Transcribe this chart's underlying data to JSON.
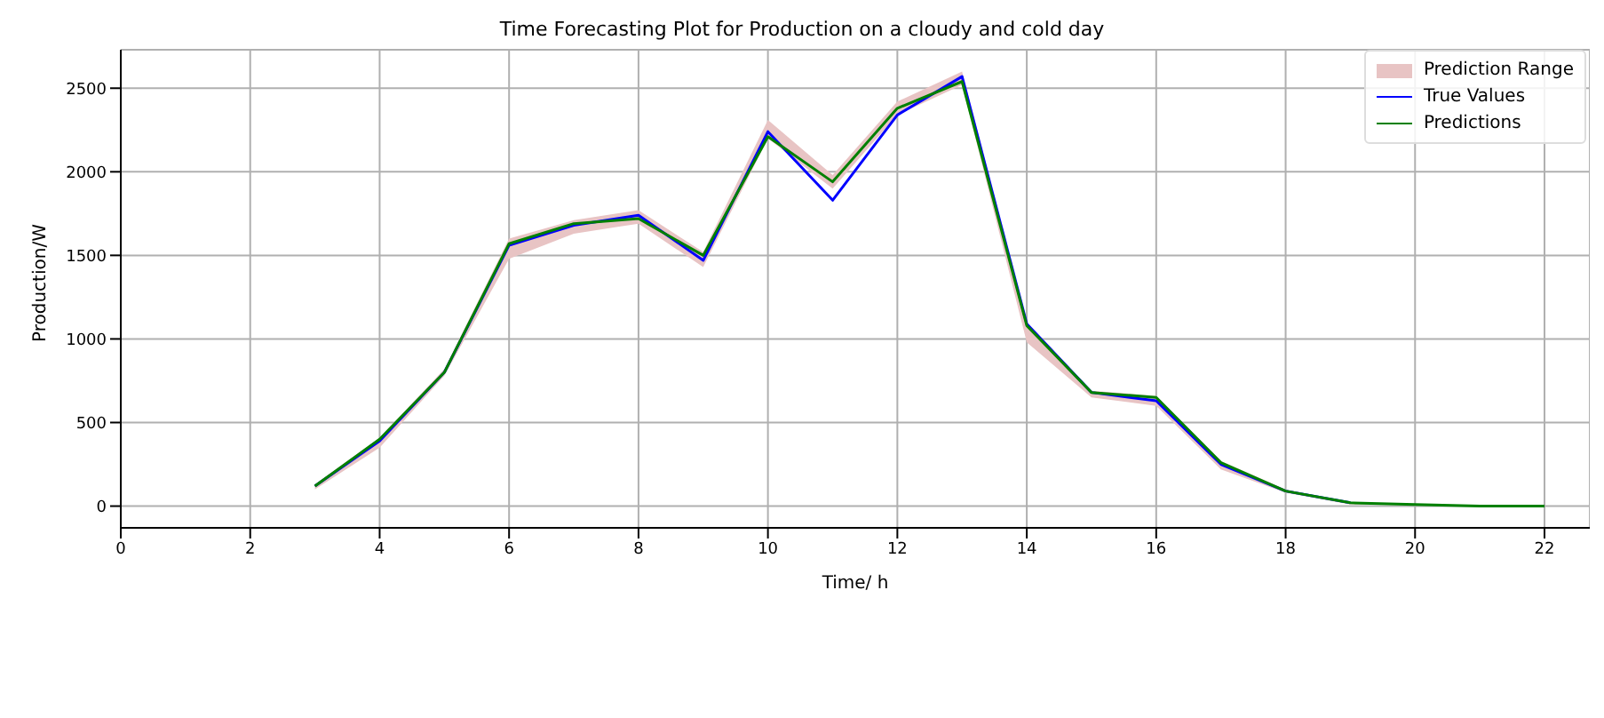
{
  "chart_data": {
    "type": "line",
    "title": "Time Forecasting Plot for Production on a cloudy and cold day",
    "xlabel": "Time/ h",
    "ylabel": "Production/W",
    "x": [
      3,
      4,
      5,
      6,
      7,
      8,
      9,
      10,
      11,
      12,
      13,
      14,
      15,
      16,
      17,
      18,
      19,
      20,
      21,
      22
    ],
    "series": [
      {
        "name": "Prediction Range",
        "type": "area",
        "color": "#e8c4c4",
        "values": [
          null,
          null,
          null,
          null,
          null,
          null,
          null,
          null,
          null,
          null,
          null,
          null,
          null,
          null,
          null,
          null,
          null,
          null,
          null,
          null
        ],
        "lower": [
          100,
          350,
          780,
          1480,
          1630,
          1690,
          1430,
          2200,
          1900,
          2340,
          2520,
          980,
          650,
          600,
          220,
          80,
          10,
          5,
          0,
          0
        ],
        "upper": [
          130,
          410,
          820,
          1600,
          1710,
          1770,
          1520,
          2310,
          1980,
          2420,
          2600,
          1100,
          690,
          660,
          270,
          100,
          20,
          12,
          5,
          3
        ]
      },
      {
        "name": "True Values",
        "color": "#0000ff",
        "values": [
          120,
          390,
          800,
          1560,
          1680,
          1740,
          1470,
          2240,
          1830,
          2340,
          2570,
          1090,
          680,
          630,
          250,
          90,
          20,
          null,
          null,
          null
        ]
      },
      {
        "name": "Predictions",
        "color": "#008000",
        "values": [
          120,
          400,
          800,
          1570,
          1690,
          1720,
          1500,
          2210,
          1940,
          2380,
          2540,
          1080,
          680,
          650,
          260,
          90,
          20,
          10,
          0,
          0
        ]
      }
    ],
    "xlim": [
      0,
      22.7
    ],
    "xticks": [
      0,
      2,
      4,
      6,
      8,
      10,
      12,
      14,
      16,
      18,
      20,
      22
    ],
    "ylim": [
      -130,
      2730
    ],
    "yticks": [
      0,
      500,
      1000,
      1500,
      2000,
      2500
    ],
    "grid": true,
    "legend": "top right",
    "marker": "none",
    "line_style": "solid"
  }
}
